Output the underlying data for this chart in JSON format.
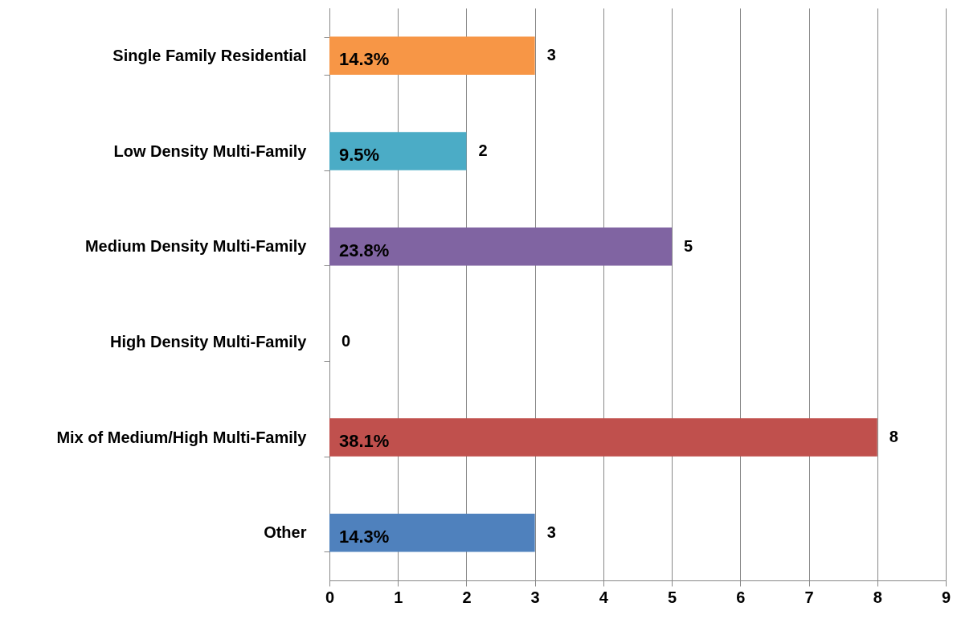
{
  "chart_data": {
    "type": "bar",
    "orientation": "horizontal",
    "categories": [
      "Single Family Residential",
      "Low Density Multi-Family",
      "Medium Density Multi-Family",
      "High Density Multi-Family",
      "Mix of Medium/High Multi-Family",
      "Other"
    ],
    "values": [
      3,
      2,
      5,
      0,
      8,
      3
    ],
    "colors": [
      "#f79646",
      "#4bacc6",
      "#8064a2",
      "#9bbb59",
      "#c0504d",
      "#4f81bd"
    ],
    "annotations": [
      "14.3%",
      "9.5%",
      "23.8%",
      "38.1%",
      "14.3%"
    ],
    "xlim": [
      0,
      9
    ],
    "xticks": [
      0,
      1,
      2,
      3,
      4,
      5,
      6,
      7,
      8,
      9
    ],
    "grid": "x",
    "data_labels": true
  }
}
